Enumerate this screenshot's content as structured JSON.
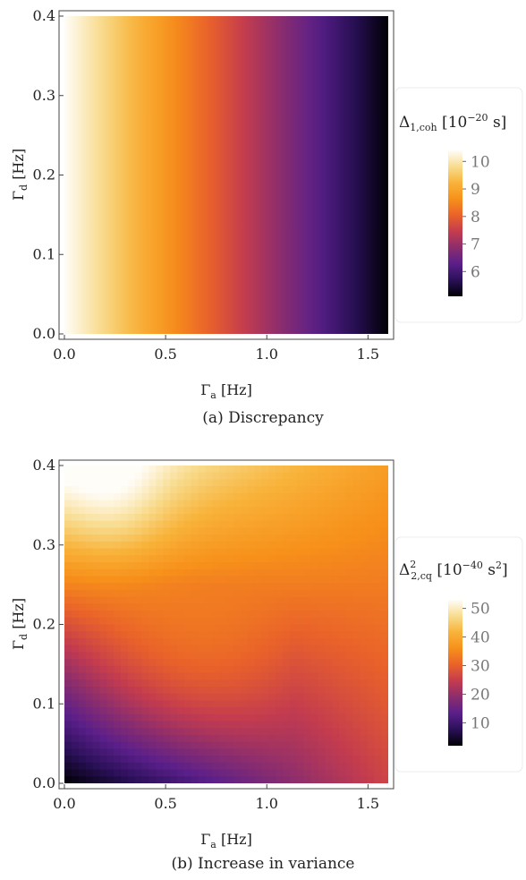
{
  "chart_data": [
    {
      "type": "heatmap",
      "caption": "(a) Discrepancy",
      "xlabel": "Γa [Hz]",
      "ylabel": "Γd [Hz]",
      "xlim": [
        0.0,
        1.6
      ],
      "ylim": [
        0.0,
        0.4
      ],
      "x_ticks": [
        "0.0",
        "0.5",
        "1.0",
        "1.5"
      ],
      "x_tick_values": [
        0.0,
        0.5,
        1.0,
        1.5
      ],
      "y_ticks": [
        "0.0",
        "0.1",
        "0.2",
        "0.3",
        "0.4"
      ],
      "y_tick_values": [
        0.0,
        0.1,
        0.2,
        0.3,
        0.4
      ],
      "colorbar": {
        "label": "Δ1,coh [10^-20 s]",
        "range": [
          5.1,
          10.4
        ],
        "ticks": [
          "10",
          "9",
          "8",
          "7",
          "6"
        ],
        "tick_values": [
          10,
          9,
          8,
          7,
          6
        ]
      },
      "field": "linear-in-x: value ≈ 10.4 at Γa=0 decreasing to ≈ 5.1 at Γa=1.6, independent of Γd"
    },
    {
      "type": "heatmap",
      "caption": "(b) Increase in variance",
      "xlabel": "Γa [Hz]",
      "ylabel": "Γd [Hz]",
      "xlim": [
        0.0,
        1.6
      ],
      "ylim": [
        0.0,
        0.4
      ],
      "x_ticks": [
        "0.0",
        "0.5",
        "1.0",
        "1.5"
      ],
      "x_tick_values": [
        0.0,
        0.5,
        1.0,
        1.5
      ],
      "y_ticks": [
        "0.0",
        "0.1",
        "0.2",
        "0.3",
        "0.4"
      ],
      "y_tick_values": [
        0.0,
        0.1,
        0.2,
        0.3,
        0.4
      ],
      "colorbar": {
        "label": "Δ2,cq² [10^-40 s²]",
        "range": [
          2,
          53
        ],
        "ticks": [
          "50",
          "40",
          "30",
          "20",
          "10"
        ],
        "tick_values": [
          50,
          40,
          30,
          20,
          10
        ]
      },
      "field": "minimum ≈ 2 at (0,0), maximum ≈ 53 near (0,0.4); ≈ 26 at (1.6,0), ≈ 38 at (1.6,0.4)"
    }
  ],
  "colorscale": [
    "#000004",
    "#2a1058",
    "#5a1f8a",
    "#8b2d6e",
    "#c43c4e",
    "#e9622a",
    "#f7901a",
    "#f8b33a",
    "#f8dc8f",
    "#fffdf8"
  ]
}
